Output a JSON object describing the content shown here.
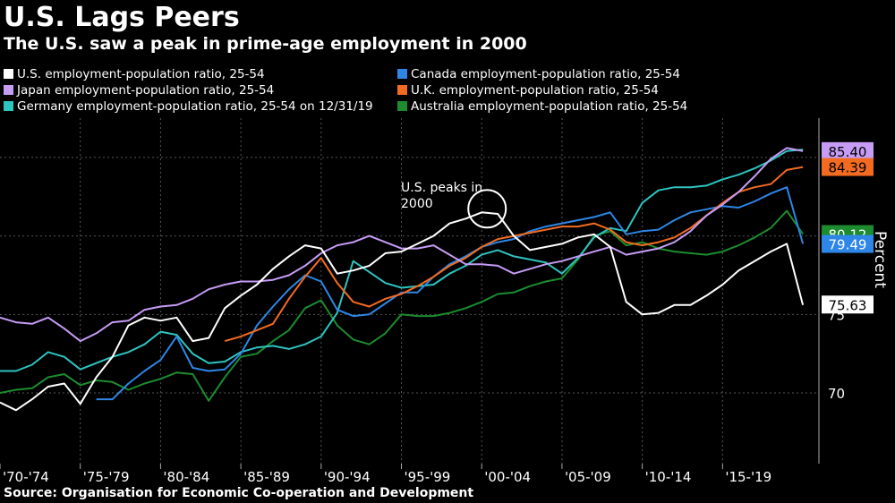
{
  "title": "U.S. Lags Peers",
  "subtitle": "The U.S. saw a peak in prime-age employment in 2000",
  "source": "Source: Organisation for Economic Co-operation and Development",
  "chart_data": {
    "type": "line",
    "title": "U.S. Lags Peers",
    "subtitle": "The U.S. saw a peak in prime-age employment in 2000",
    "ylabel": "Percent",
    "xlabel": "",
    "x": [
      1970,
      1971,
      1972,
      1973,
      1974,
      1975,
      1976,
      1977,
      1978,
      1979,
      1980,
      1981,
      1982,
      1983,
      1984,
      1985,
      1986,
      1987,
      1988,
      1989,
      1990,
      1991,
      1992,
      1993,
      1994,
      1995,
      1996,
      1997,
      1998,
      1999,
      2000,
      2001,
      2002,
      2003,
      2004,
      2005,
      2006,
      2007,
      2008,
      2009,
      2010,
      2011,
      2012,
      2013,
      2014,
      2015,
      2016,
      2017,
      2018,
      2019,
      2020
    ],
    "xlim": [
      1970,
      2021
    ],
    "ylim": [
      65.5,
      87.5
    ],
    "y_ticks": [
      70,
      75,
      80,
      85
    ],
    "y_tick_labels": [
      "70",
      "75",
      "80",
      "85"
    ],
    "x_tick_labels": [
      "'70-'74",
      "'75-'79",
      "'80-'84",
      "'85-'89",
      "'90-'94",
      "'95-'99",
      "'00-'04",
      "'05-'09",
      "'10-'14",
      "'15-'19"
    ],
    "x_tick_positions": [
      1970,
      1975,
      1980,
      1985,
      1990,
      1995,
      2000,
      2005,
      2010,
      2015
    ],
    "grid": true,
    "legend_position": "top",
    "series": [
      {
        "name": "U.S. employment-population ratio, 25-54",
        "color": "#ffffff",
        "last_label": "75.63",
        "values": [
          69.4,
          68.9,
          69.6,
          70.4,
          70.6,
          69.3,
          71.0,
          72.3,
          74.3,
          74.8,
          74.6,
          74.8,
          73.3,
          73.5,
          75.4,
          76.2,
          76.9,
          77.9,
          78.7,
          79.4,
          79.2,
          77.6,
          77.8,
          78.1,
          78.9,
          79.0,
          79.5,
          80.0,
          80.8,
          81.1,
          81.5,
          81.4,
          80.0,
          79.1,
          79.3,
          79.5,
          79.9,
          80.1,
          79.3,
          75.8,
          75.0,
          75.1,
          75.6,
          75.6,
          76.2,
          76.9,
          77.8,
          78.4,
          79.0,
          79.5,
          75.6
        ]
      },
      {
        "name": "Japan employment-population ratio, 25-54",
        "color": "#c69cf5",
        "last_label": "85.40",
        "values": [
          74.8,
          74.5,
          74.4,
          74.8,
          74.1,
          73.3,
          73.8,
          74.5,
          74.6,
          75.3,
          75.5,
          75.6,
          76.0,
          76.6,
          76.9,
          77.1,
          77.1,
          77.2,
          77.5,
          78.1,
          78.9,
          79.4,
          79.6,
          80.0,
          79.6,
          79.2,
          79.2,
          79.4,
          78.8,
          78.2,
          78.2,
          78.1,
          77.6,
          77.9,
          78.2,
          78.4,
          78.7,
          79.0,
          79.3,
          78.8,
          79.0,
          79.2,
          79.6,
          80.3,
          81.3,
          82.0,
          82.8,
          83.8,
          84.9,
          85.6,
          85.4
        ]
      },
      {
        "name": "Germany employment-population ratio, 25-54 on 12/31/19",
        "color": "#2ec4c0",
        "last_label": "",
        "values": [
          71.4,
          71.4,
          71.8,
          72.6,
          72.3,
          71.5,
          71.9,
          72.3,
          72.6,
          73.1,
          73.9,
          73.7,
          72.5,
          71.9,
          72.0,
          72.6,
          72.9,
          73.0,
          72.8,
          73.1,
          73.6,
          75.1,
          78.4,
          77.7,
          77.0,
          76.7,
          76.8,
          76.9,
          77.6,
          78.1,
          78.8,
          79.1,
          78.7,
          78.5,
          78.3,
          77.6,
          78.6,
          79.9,
          80.5,
          80.3,
          82.1,
          82.9,
          83.1,
          83.1,
          83.2,
          83.6,
          83.9,
          84.3,
          84.8,
          85.4,
          85.5
        ]
      },
      {
        "name": "Canada employment-population ratio, 25-54",
        "color": "#2e86e6",
        "last_label": "79.49",
        "values": [
          null,
          null,
          null,
          null,
          null,
          null,
          69.6,
          69.6,
          70.6,
          71.4,
          72.1,
          73.6,
          71.6,
          71.4,
          71.5,
          72.5,
          74.3,
          75.5,
          76.6,
          77.5,
          77.1,
          75.3,
          74.9,
          75.0,
          75.7,
          76.4,
          76.4,
          77.4,
          78.2,
          78.7,
          79.3,
          79.6,
          79.8,
          80.3,
          80.6,
          80.8,
          81.0,
          81.2,
          81.5,
          80.1,
          80.3,
          80.4,
          81.0,
          81.5,
          81.7,
          81.9,
          81.8,
          82.2,
          82.7,
          83.1,
          79.5
        ]
      },
      {
        "name": "U.K. employment-population ratio, 25-54",
        "color": "#f26b21",
        "last_label": "84.39",
        "values": [
          null,
          null,
          null,
          null,
          null,
          null,
          null,
          null,
          null,
          null,
          null,
          null,
          null,
          null,
          73.3,
          73.6,
          74.0,
          74.4,
          76.0,
          77.4,
          78.6,
          77.0,
          75.8,
          75.5,
          76.0,
          76.3,
          76.8,
          77.4,
          78.1,
          78.6,
          79.3,
          79.8,
          80.0,
          80.2,
          80.4,
          80.6,
          80.6,
          80.8,
          80.4,
          79.6,
          79.4,
          79.6,
          79.9,
          80.5,
          81.3,
          82.1,
          82.8,
          83.1,
          83.3,
          84.2,
          84.39
        ]
      },
      {
        "name": "Australia employment-population ratio, 25-54",
        "color": "#1c8c2e",
        "last_label": "80.12",
        "values": [
          70.0,
          70.2,
          70.3,
          71.0,
          71.2,
          70.5,
          70.8,
          70.7,
          70.2,
          70.6,
          70.9,
          71.3,
          71.2,
          69.5,
          71.0,
          72.3,
          72.5,
          73.3,
          74.0,
          75.4,
          75.9,
          74.3,
          73.4,
          73.1,
          73.8,
          75.0,
          74.9,
          74.9,
          75.1,
          75.4,
          75.8,
          76.3,
          76.4,
          76.8,
          77.1,
          77.3,
          78.5,
          80.0,
          80.3,
          79.4,
          79.6,
          79.2,
          79.0,
          78.9,
          78.8,
          79.0,
          79.4,
          79.9,
          80.5,
          81.6,
          80.12
        ]
      }
    ],
    "annotations": [
      {
        "text": "U.S. peaks in 2000",
        "x": 2000
      }
    ]
  }
}
